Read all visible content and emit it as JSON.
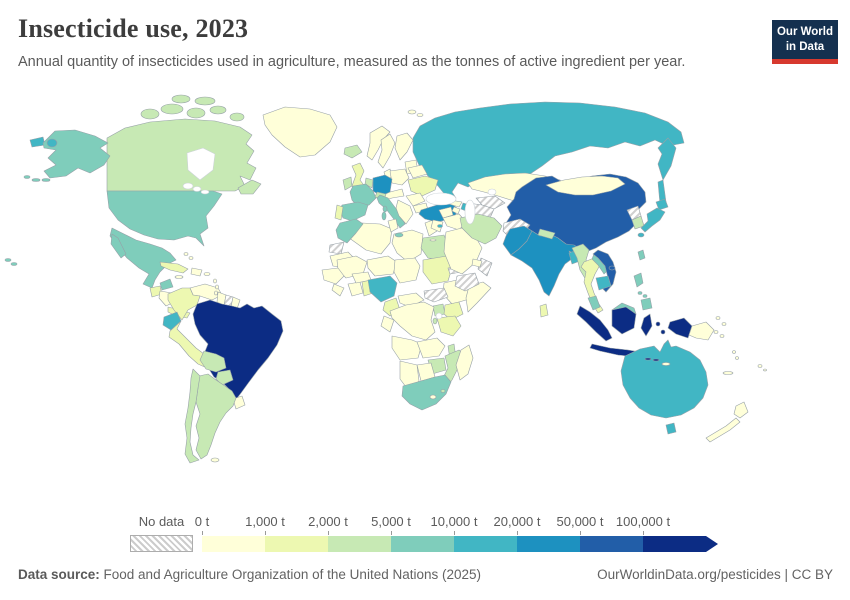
{
  "header": {
    "title": "Insecticide use, 2023",
    "subtitle": "Annual quantity of insecticides used in agriculture, measured as the tonnes of active ingredient per year.",
    "logo_line1": "Our World",
    "logo_line2": "in Data",
    "logo_bg": "#14304f",
    "logo_accent": "#d7392e"
  },
  "legend": {
    "no_data_label": "No data",
    "tick_labels": [
      "0 t",
      "1,000 t",
      "2,000 t",
      "5,000 t",
      "10,000 t",
      "20,000 t",
      "50,000 t",
      "100,000 t"
    ],
    "colors": [
      "#ffffd9",
      "#edf8b1",
      "#c7e9b4",
      "#7fcdbb",
      "#41b6c4",
      "#1d91c0",
      "#225ea8",
      "#0c2c84"
    ]
  },
  "footer": {
    "label": "Data source:",
    "source": " Food and Agriculture Organization of the United Nations (2025)",
    "link": "OurWorldinData.org/pesticides | CC BY"
  },
  "map_style": {
    "ocean": "#ffffff",
    "border": "#97a1a8",
    "no_data_pattern": "gray-diagonal-hatch"
  },
  "chart_data": {
    "type": "choropleth_map",
    "title": "Insecticide use, 2023",
    "year": 2023,
    "unit": "tonnes of active ingredient per year",
    "source": "Food and Agriculture Organization of the United Nations (2025)",
    "bin_edges_t": [
      0,
      1000,
      2000,
      5000,
      10000,
      20000,
      50000,
      100000
    ],
    "band_labels": [
      "0-1,000 t",
      "1,000-2,000 t",
      "2,000-5,000 t",
      "5,000-10,000 t",
      "10,000-20,000 t",
      "20,000-50,000 t",
      "50,000-100,000 t",
      "100,000+ t"
    ],
    "legend_position": "bottom",
    "countries": {
      "greenland": 0,
      "canada": 2,
      "usa": 3,
      "mexico": 3,
      "guatemala": 1,
      "honduras-nicaragua": 0,
      "costa-rica-panama": 1,
      "cuba": 1,
      "hispaniola": 0,
      "jamaica": 0,
      "puerto-rico": 0,
      "bahamas": 0,
      "lesser-antilles": 0,
      "venezuela": 0,
      "colombia": 1,
      "guyana": 0,
      "suriname": "no_data",
      "french-guiana": 0,
      "ecuador": 4,
      "peru": 1,
      "brazil": 7,
      "bolivia": 2,
      "paraguay": 2,
      "uruguay": 0,
      "argentina": 2,
      "chile": 2,
      "falkland-islands": 0,
      "iceland": 2,
      "norway": 0,
      "sweden": 0,
      "finland": 0,
      "baltic-states": 0,
      "svalbard": 0,
      "united-kingdom": 1,
      "ireland": 2,
      "denmark": 0,
      "germany": 5,
      "benelux": 2,
      "france": 3,
      "spain": 3,
      "portugal": 1,
      "italy": 3,
      "switzerland": 2,
      "central-europe": 0,
      "poland": 0,
      "ukraine": 1,
      "belarus": 0,
      "romania": 0,
      "balkans": 0,
      "bulgaria": 0,
      "greece": 0,
      "turkey": 5,
      "cyprus": 4,
      "georgia": 0,
      "armenia": 0,
      "azerbaijan": 4,
      "russia": 4,
      "kazakhstan": 0,
      "uzbekistan": "no_data",
      "turkmenistan": "no_data",
      "kyrgyzstan": 0,
      "tajikistan": "no_data",
      "syria": 0,
      "iraq": 0,
      "jordan": 0,
      "saudi-arabia": 0,
      "yemen": "no_data",
      "oman": "no_data",
      "uae": 0,
      "iran": 2,
      "afghanistan": "no_data",
      "pakistan": 5,
      "india": 5,
      "nepal": 2,
      "bangladesh": 4,
      "sri-lanka": 1,
      "china": 6,
      "mongolia": 0,
      "north-korea": "no_data",
      "south-korea": 2,
      "japan": 4,
      "taiwan": 3,
      "myanmar": 2,
      "thailand": 1,
      "laos": 3,
      "vietnam": 6,
      "cambodia": 4,
      "malaysia": 3,
      "indonesia": 7,
      "philippines": 3,
      "timor-leste": 0,
      "papua-new-guinea": 0,
      "australia": 4,
      "new-zealand": 0,
      "new-caledonia": 0,
      "fiji": 0,
      "solomon-islands": 0,
      "vanuatu": 0,
      "pacific-islands": 0,
      "morocco": 3,
      "western-sahara": "no_data",
      "algeria": 0,
      "tunisia": 0,
      "libya": 0,
      "egypt": 2,
      "sudan": 1,
      "eritrea": "no_data",
      "mauritania": 0,
      "mali": 0,
      "niger": 0,
      "chad": 0,
      "senegal": 0,
      "sierra-leone-liberia": 0,
      "ivory-coast": 0,
      "ghana": 1,
      "togo-benin": 0,
      "burkina-faso": 0,
      "nigeria": 4,
      "cameroon": 1,
      "central-african-republic": 0,
      "ethiopia": 0,
      "somalia": 0,
      "south-sudan": "no_data",
      "uganda": 2,
      "kenya": 1,
      "dr-congo": 0,
      "congo-gabon": 0,
      "tanzania": 1,
      "rwanda-burundi": 2,
      "angola": 0,
      "zambia": 0,
      "malawi": 2,
      "mozambique": 2,
      "zimbabwe": 2,
      "botswana": 0,
      "namibia": 0,
      "south-africa": 3,
      "lesotho": 0,
      "eswatini": 2,
      "madagascar": 0
    }
  }
}
